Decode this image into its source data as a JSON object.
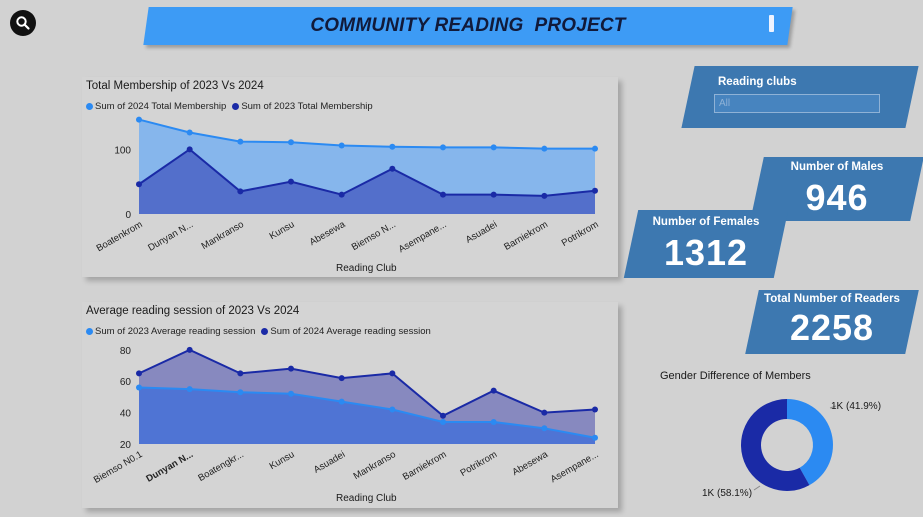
{
  "header": {
    "title": "COMMUNITY READING  PROJECT",
    "search_icon": "search-icon"
  },
  "slicer": {
    "label": "Reading clubs",
    "selected": "All"
  },
  "kpis": {
    "males": {
      "label": "Number of Males",
      "value": "946"
    },
    "females": {
      "label": "Number of Females",
      "value": "1312"
    },
    "total": {
      "label": "Total Number of Readers",
      "value": "2258"
    }
  },
  "colors": {
    "light_series": "#2b8af2",
    "dark_series": "#1a2aa6",
    "kpi_bg": "#3d78b0",
    "banner": "#3d9bf5"
  },
  "chart_data": [
    {
      "type": "area",
      "title": "Total Membership of 2023 Vs 2024",
      "xlabel": "Reading Club",
      "ylabel": "",
      "ylim": [
        0,
        150
      ],
      "yticks": [
        "0",
        "100"
      ],
      "categories": [
        "Boatenkrom",
        "Dunyan N...",
        "Mankranso",
        "Kunsu",
        "Abesewa",
        "Biemso N...",
        "Asempane...",
        "Asuadei",
        "Barniekrom",
        "Potrikrom"
      ],
      "series": [
        {
          "name": "Sum of 2024 Total Membership",
          "values": [
            146,
            126,
            112,
            111,
            106,
            104,
            103,
            103,
            101,
            101
          ]
        },
        {
          "name": "Sum of 2023 Total Membership",
          "values": [
            46,
            100,
            35,
            50,
            30,
            70,
            30,
            30,
            28,
            36
          ]
        }
      ]
    },
    {
      "type": "area",
      "title": "Average reading session of 2023 Vs 2024",
      "xlabel": "Reading Club",
      "ylabel": "",
      "ylim": [
        20,
        85
      ],
      "yticks": [
        "20",
        "40",
        "60",
        "80"
      ],
      "categories": [
        "Biemso N0.1",
        "Dunyan N...",
        "Boatengkr...",
        "Kunsu",
        "Asuadei",
        "Mankranso",
        "Barniekrom",
        "Potrikrom",
        "Abesewa",
        "Asempane..."
      ],
      "series": [
        {
          "name": "Sum of 2023 Average reading session",
          "values": [
            56,
            55,
            53,
            52,
            47,
            42,
            34,
            34,
            30,
            24
          ]
        },
        {
          "name": "Sum of 2024 Average reading session",
          "values": [
            65,
            80,
            65,
            68,
            62,
            65,
            38,
            54,
            40,
            42
          ]
        }
      ]
    },
    {
      "type": "pie",
      "title": "Gender Difference of Members",
      "slices": [
        {
          "label": "1K (41.9%)",
          "value": 41.9,
          "color": "#2b8af2"
        },
        {
          "label": "1K (58.1%)",
          "value": 58.1,
          "color": "#1a2aa6"
        }
      ]
    }
  ]
}
